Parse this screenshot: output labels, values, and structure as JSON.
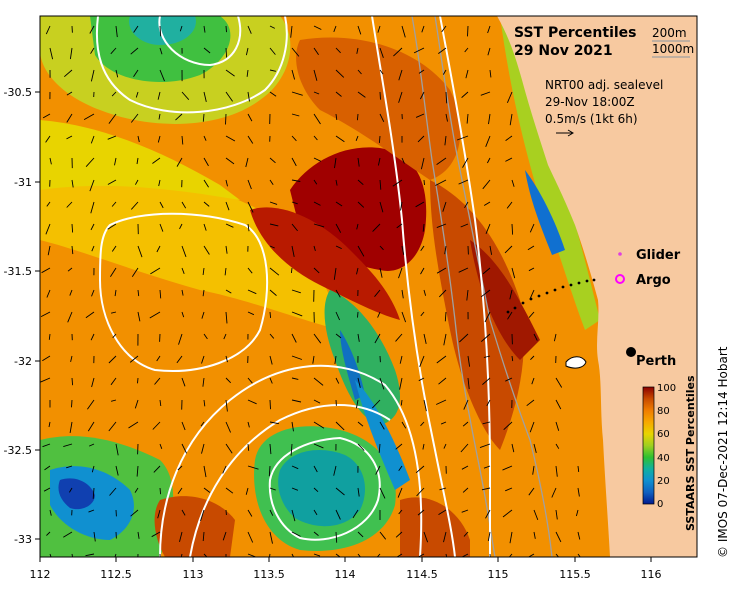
{
  "title": {
    "line1": "SST Percentiles",
    "line2": "29 Nov 2021"
  },
  "isobaths": {
    "shallow": "200m",
    "deep": "1000m"
  },
  "sealevel": {
    "line1": "NRT00 adj. sealevel",
    "line2": "29-Nov 18:00Z",
    "line3": "0.5m/s (1kt 6h)"
  },
  "legend": {
    "glider": "Glider",
    "argo": "Argo",
    "glider_color": "#e040e0",
    "argo_color": "#ff00ff"
  },
  "city": {
    "name": "Perth"
  },
  "colorbar": {
    "title": "SSTAARS SST Percentiles",
    "ticks": [
      "100",
      "80",
      "60",
      "40",
      "20",
      "0"
    ],
    "colors": [
      "#8b0000",
      "#c84a00",
      "#f07d00",
      "#f7a800",
      "#e8d400",
      "#a0d020",
      "#30c030",
      "#10b0a0",
      "#1090d0",
      "#1060c0",
      "#001a90"
    ]
  },
  "credit": "© IMOS 07-Dec-2021 12:14 Hobart",
  "axes": {
    "x_ticks": [
      "112",
      "112.5",
      "113",
      "113.5",
      "114",
      "114.5",
      "115",
      "115.5",
      "116"
    ],
    "y_ticks": [
      "-30.5",
      "-31",
      "-31.5",
      "-32",
      "-32.5",
      "-33"
    ]
  },
  "colors": {
    "land": "#f7c9a0",
    "contour": "#ffffff",
    "isobath": "#a0a0a0"
  }
}
